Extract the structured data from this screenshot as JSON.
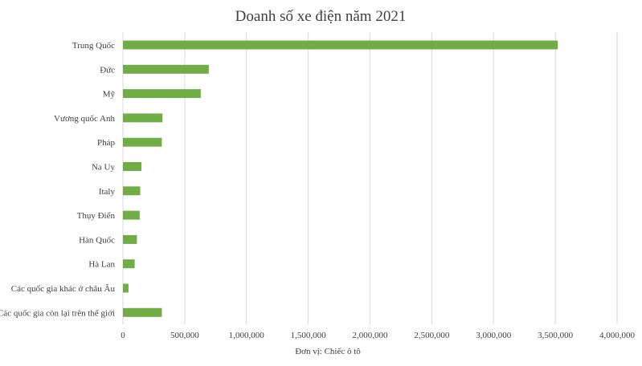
{
  "chart_data": {
    "type": "bar",
    "orientation": "horizontal",
    "title": "Doanh số xe điện năm 2021",
    "xlabel": "Đơn vị: Chiếc ô tô",
    "ylabel": "",
    "categories": [
      "Trung Quốc",
      "Đức",
      "Mỹ",
      "Vương quốc Anh",
      "Pháp",
      "Na Uy",
      "Italy",
      "Thụy Điển",
      "Hàn Quốc",
      "Hà Lan",
      "Các quốc gia khác ở châu Âu",
      "Các quốc gia còn lại trên thế giới"
    ],
    "values": [
      3520000,
      695000,
      630000,
      320000,
      315000,
      150000,
      140000,
      136000,
      113000,
      95000,
      45000,
      315000
    ],
    "xlim": [
      0,
      4000000
    ],
    "xticks": [
      0,
      500000,
      1000000,
      1500000,
      2000000,
      2500000,
      3000000,
      3500000,
      4000000
    ],
    "xtick_labels": [
      "0",
      "500,000",
      "1,000,000",
      "1,500,000",
      "2,000,000",
      "2,500,000",
      "3,000,000",
      "3,500,000",
      "4,000,000"
    ],
    "grid": true,
    "legend": "none",
    "bar_color": "#70ad47"
  }
}
